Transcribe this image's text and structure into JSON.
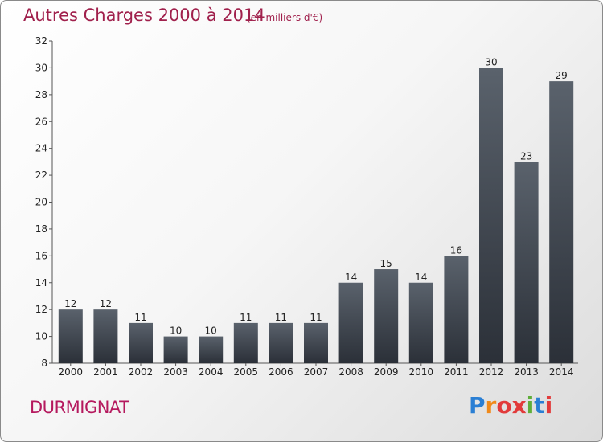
{
  "title": "Autres Charges 2000 à 2014",
  "subtitle": "(en milliers d'€)",
  "commune": "DURMIGNAT",
  "logo": {
    "letters": [
      "P",
      "r",
      "o",
      "x",
      "i",
      "t",
      "i"
    ],
    "colors": [
      "#2a7fd4",
      "#f08a1a",
      "#e23b3b",
      "#e23b3b",
      "#5fae3a",
      "#2a7fd4",
      "#e23b3b"
    ]
  },
  "chart_data": {
    "type": "bar",
    "categories": [
      "2000",
      "2001",
      "2002",
      "2003",
      "2004",
      "2005",
      "2006",
      "2007",
      "2008",
      "2009",
      "2010",
      "2011",
      "2012",
      "2013",
      "2014"
    ],
    "values": [
      12,
      12,
      11,
      10,
      10,
      11,
      11,
      11,
      14,
      15,
      14,
      16,
      30,
      23,
      29
    ],
    "ylim": [
      8,
      32
    ],
    "yticks": [
      8,
      10,
      12,
      14,
      16,
      18,
      20,
      22,
      24,
      26,
      28,
      30,
      32
    ],
    "bar_color": "#454c55",
    "grid": false
  }
}
